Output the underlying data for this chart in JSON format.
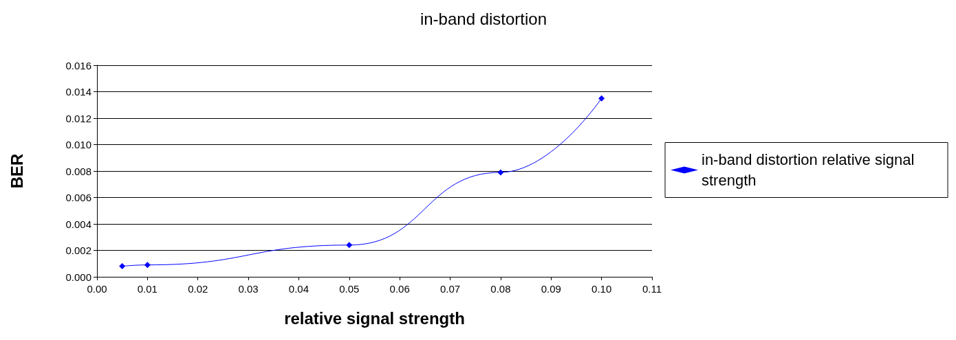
{
  "chart_data": {
    "type": "line",
    "title": "in-band distortion",
    "xlabel": "relative signal strength",
    "ylabel": "BER",
    "x": [
      0.005,
      0.01,
      0.05,
      0.08,
      0.1
    ],
    "series": [
      {
        "name": "in-band distortion relative signal strength",
        "color": "#0000ff",
        "values": [
          0.0008,
          0.0009,
          0.0024,
          0.0079,
          0.0135
        ]
      }
    ],
    "xlim": [
      0,
      0.11
    ],
    "xticks": [
      {
        "value": 0,
        "label": "0.00"
      },
      {
        "value": 0.01,
        "label": "0.01"
      },
      {
        "value": 0.02,
        "label": "0.02"
      },
      {
        "value": 0.03,
        "label": "0.03"
      },
      {
        "value": 0.04,
        "label": "0.04"
      },
      {
        "value": 0.05,
        "label": "0.05"
      },
      {
        "value": 0.06,
        "label": "0.06"
      },
      {
        "value": 0.07,
        "label": "0.07"
      },
      {
        "value": 0.08,
        "label": "0.08"
      },
      {
        "value": 0.09,
        "label": "0.09"
      },
      {
        "value": 0.1,
        "label": "0.10"
      },
      {
        "value": 0.11,
        "label": "0.11"
      }
    ],
    "ylim": [
      0,
      0.016
    ],
    "yticks": [
      {
        "value": 0,
        "label": "0.000"
      },
      {
        "value": 0.002,
        "label": "0.002"
      },
      {
        "value": 0.004,
        "label": "0.004"
      },
      {
        "value": 0.006,
        "label": "0.006"
      },
      {
        "value": 0.008,
        "label": "0.008"
      },
      {
        "value": 0.01,
        "label": "0.010"
      },
      {
        "value": 0.012,
        "label": "0.012"
      },
      {
        "value": 0.014,
        "label": "0.014"
      },
      {
        "value": 0.016,
        "label": "0.016"
      }
    ],
    "grid": "y",
    "legend": "right",
    "marker": "diamond",
    "line_style": "solid"
  }
}
